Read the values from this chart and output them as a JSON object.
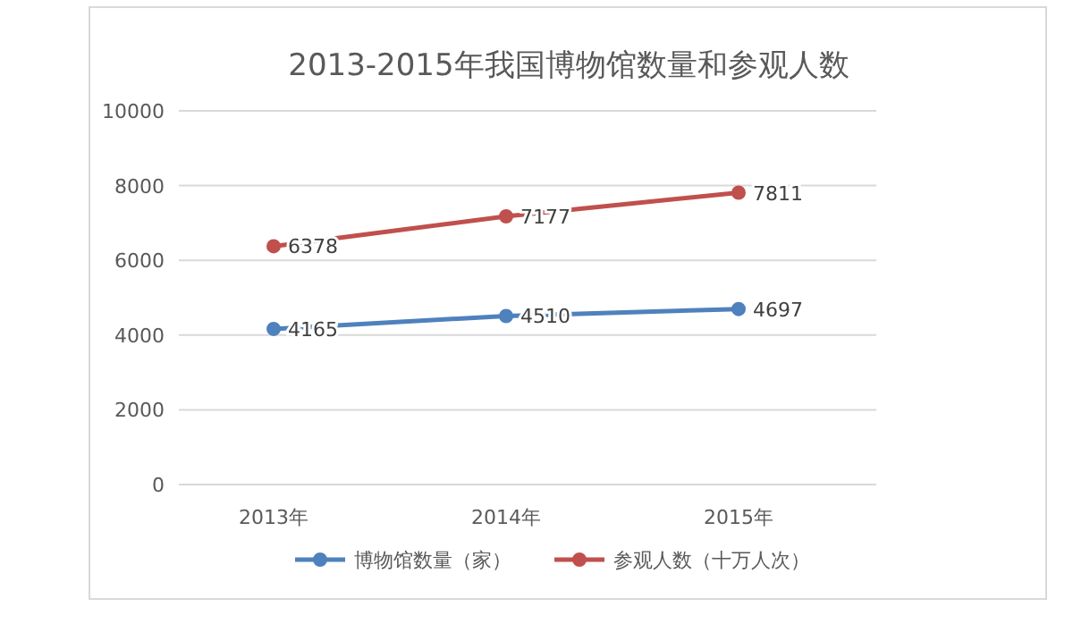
{
  "chart_data": {
    "type": "line",
    "title": "2013-2015年我国博物馆数量和参观人数",
    "categories": [
      "2013年",
      "2014年",
      "2015年"
    ],
    "series": [
      {
        "name": "博物馆数量（家）",
        "color": "#4f81bd",
        "values": [
          4165,
          4510,
          4697
        ]
      },
      {
        "name": "参观人数（十万人次）",
        "color": "#c0504d",
        "values": [
          6378,
          7177,
          7811
        ]
      }
    ],
    "ylim": [
      0,
      10000
    ],
    "yticks": [
      0,
      2000,
      4000,
      6000,
      8000,
      10000
    ],
    "grid": "y",
    "legend": "bottom",
    "marker": "circle",
    "data_labels": true
  }
}
